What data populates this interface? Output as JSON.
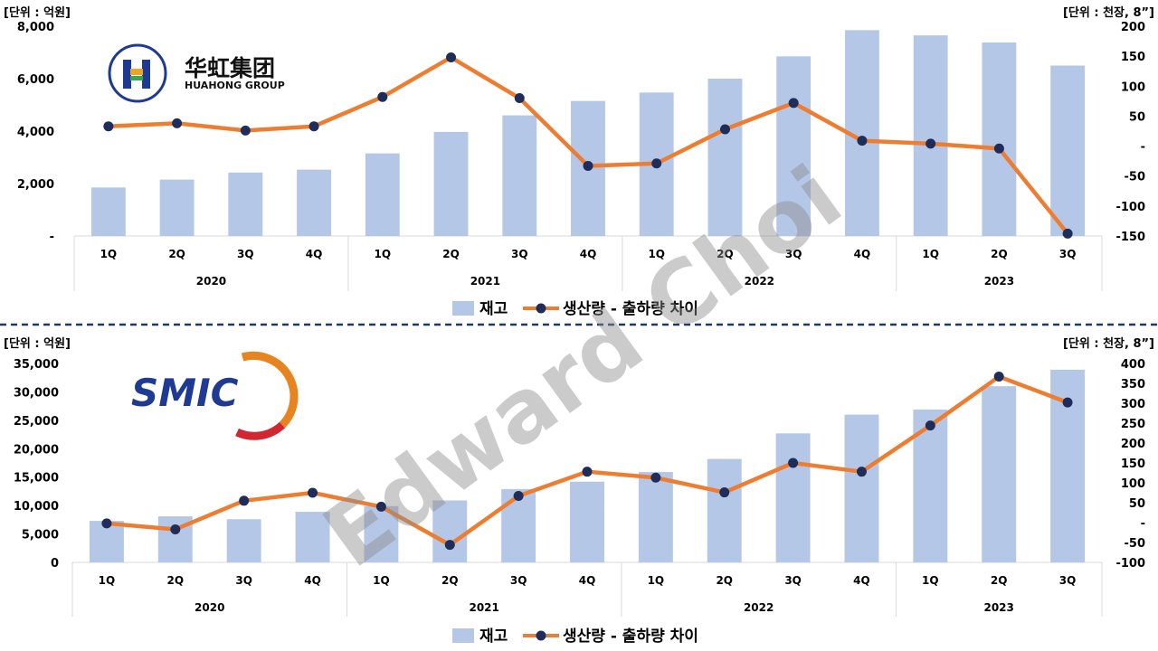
{
  "watermark": "Edward Choi",
  "colors": {
    "bar": "#b4c7e7",
    "line": "#ed7d31",
    "marker": "#1f2d5a",
    "grid": "#d9d9d9",
    "divider": "#1f3864"
  },
  "charts": [
    {
      "logo": {
        "cn": "华虹集团",
        "en": "HUAHONG GROUP"
      },
      "unit_left": "[단위 : 억원]",
      "unit_right": "[단위 : 천장, 8”]",
      "left_ticks": [
        "-",
        "2,000",
        "4,000",
        "6,000",
        "8,000"
      ],
      "right_ticks": [
        "-150",
        "-100",
        "-50",
        "-",
        "50",
        "100",
        "150",
        "200"
      ],
      "legend": {
        "bar": "재고",
        "line": "생산량 - 출하량 차이"
      }
    },
    {
      "logo": {
        "text": "SMIC"
      },
      "unit_left": "[단위 : 억원]",
      "unit_right": "[단위 : 천장, 8”]",
      "left_ticks": [
        "0",
        "5,000",
        "10,000",
        "15,000",
        "20,000",
        "25,000",
        "30,000",
        "35,000"
      ],
      "right_ticks": [
        "-100",
        "-50",
        "-",
        "50",
        "100",
        "150",
        "200",
        "250",
        "300",
        "350",
        "400"
      ],
      "legend": {
        "bar": "재고",
        "line": "생산량 - 출하량 차이"
      }
    }
  ],
  "chart_data": [
    {
      "type": "bar",
      "categories": [
        "1Q",
        "2Q",
        "3Q",
        "4Q",
        "1Q",
        "2Q",
        "3Q",
        "4Q",
        "1Q",
        "2Q",
        "3Q",
        "4Q",
        "1Q",
        "2Q",
        "3Q"
      ],
      "groups": [
        {
          "label": "2020",
          "count": 4
        },
        {
          "label": "2021",
          "count": 4
        },
        {
          "label": "2022",
          "count": 4
        },
        {
          "label": "2023",
          "count": 3
        }
      ],
      "series": [
        {
          "name": "재고",
          "type": "bar",
          "axis": "left",
          "values": [
            1850,
            2150,
            2420,
            2530,
            3150,
            3970,
            4600,
            5150,
            5470,
            6000,
            6850,
            7850,
            7650,
            7380,
            6500
          ]
        },
        {
          "name": "생산량 - 출하량 차이",
          "type": "line",
          "axis": "right",
          "values": [
            33,
            38,
            26,
            33,
            82,
            148,
            80,
            -33,
            -29,
            28,
            72,
            9,
            4,
            -4,
            -146
          ]
        }
      ],
      "ylim_left": [
        0,
        8000
      ],
      "ylim_right": [
        -150,
        200
      ]
    },
    {
      "type": "bar",
      "categories": [
        "1Q",
        "2Q",
        "3Q",
        "4Q",
        "1Q",
        "2Q",
        "3Q",
        "4Q",
        "1Q",
        "2Q",
        "3Q",
        "4Q",
        "1Q",
        "2Q",
        "3Q"
      ],
      "groups": [
        {
          "label": "2020",
          "count": 4
        },
        {
          "label": "2021",
          "count": 4
        },
        {
          "label": "2022",
          "count": 4
        },
        {
          "label": "2023",
          "count": 3
        }
      ],
      "series": [
        {
          "name": "재고",
          "type": "bar",
          "axis": "left",
          "values": [
            7300,
            8100,
            7600,
            8900,
            9900,
            10900,
            12900,
            14200,
            15900,
            18200,
            22700,
            26000,
            26900,
            31000,
            33900
          ]
        },
        {
          "name": "생산량 - 출하량 차이",
          "type": "line",
          "axis": "right",
          "values": [
            -2,
            -17,
            55,
            75,
            40,
            -56,
            67,
            128,
            113,
            76,
            150,
            128,
            244,
            367,
            302
          ]
        }
      ],
      "ylim_left": [
        0,
        35000
      ],
      "ylim_right": [
        -100,
        400
      ]
    }
  ]
}
